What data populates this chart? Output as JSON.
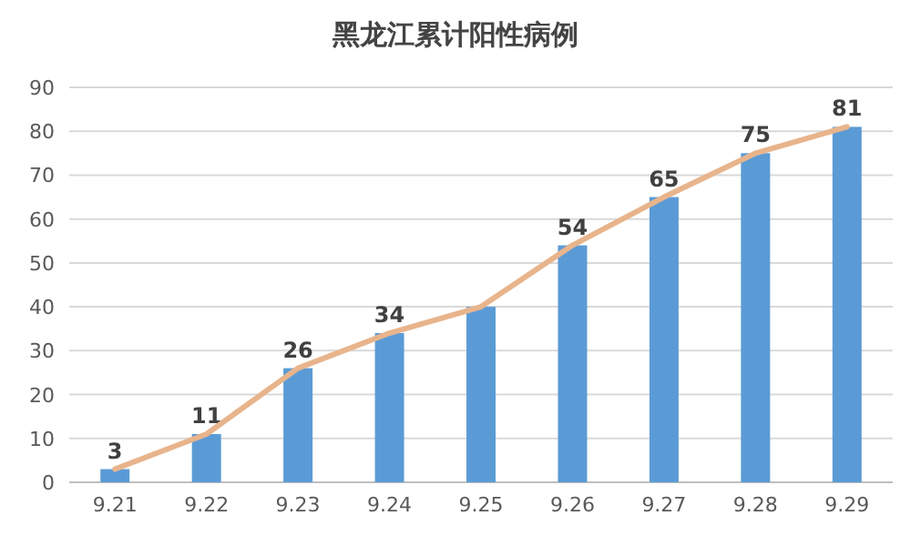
{
  "chart_data": {
    "type": "bar",
    "title": "黑龙江累计阳性病例",
    "categories": [
      "9.21",
      "9.22",
      "9.23",
      "9.24",
      "9.25",
      "9.26",
      "9.27",
      "9.28",
      "9.29"
    ],
    "series": [
      {
        "color": "#5b9bd5",
        "values": [
          3,
          11,
          26,
          34,
          40,
          54,
          65,
          75,
          81
        ],
        "value_labels": [
          "3",
          "11",
          "26",
          "34",
          null,
          "54",
          "65",
          "75",
          "81"
        ]
      },
      {
        "type": "line",
        "color": "#e8b48c",
        "values": [
          3,
          11,
          26,
          34,
          40,
          54,
          65,
          75,
          81
        ]
      }
    ],
    "ylim": [
      0,
      90
    ],
    "yticks": [
      0,
      10,
      20,
      30,
      40,
      50,
      60,
      70,
      80,
      90
    ],
    "grid": "y"
  }
}
